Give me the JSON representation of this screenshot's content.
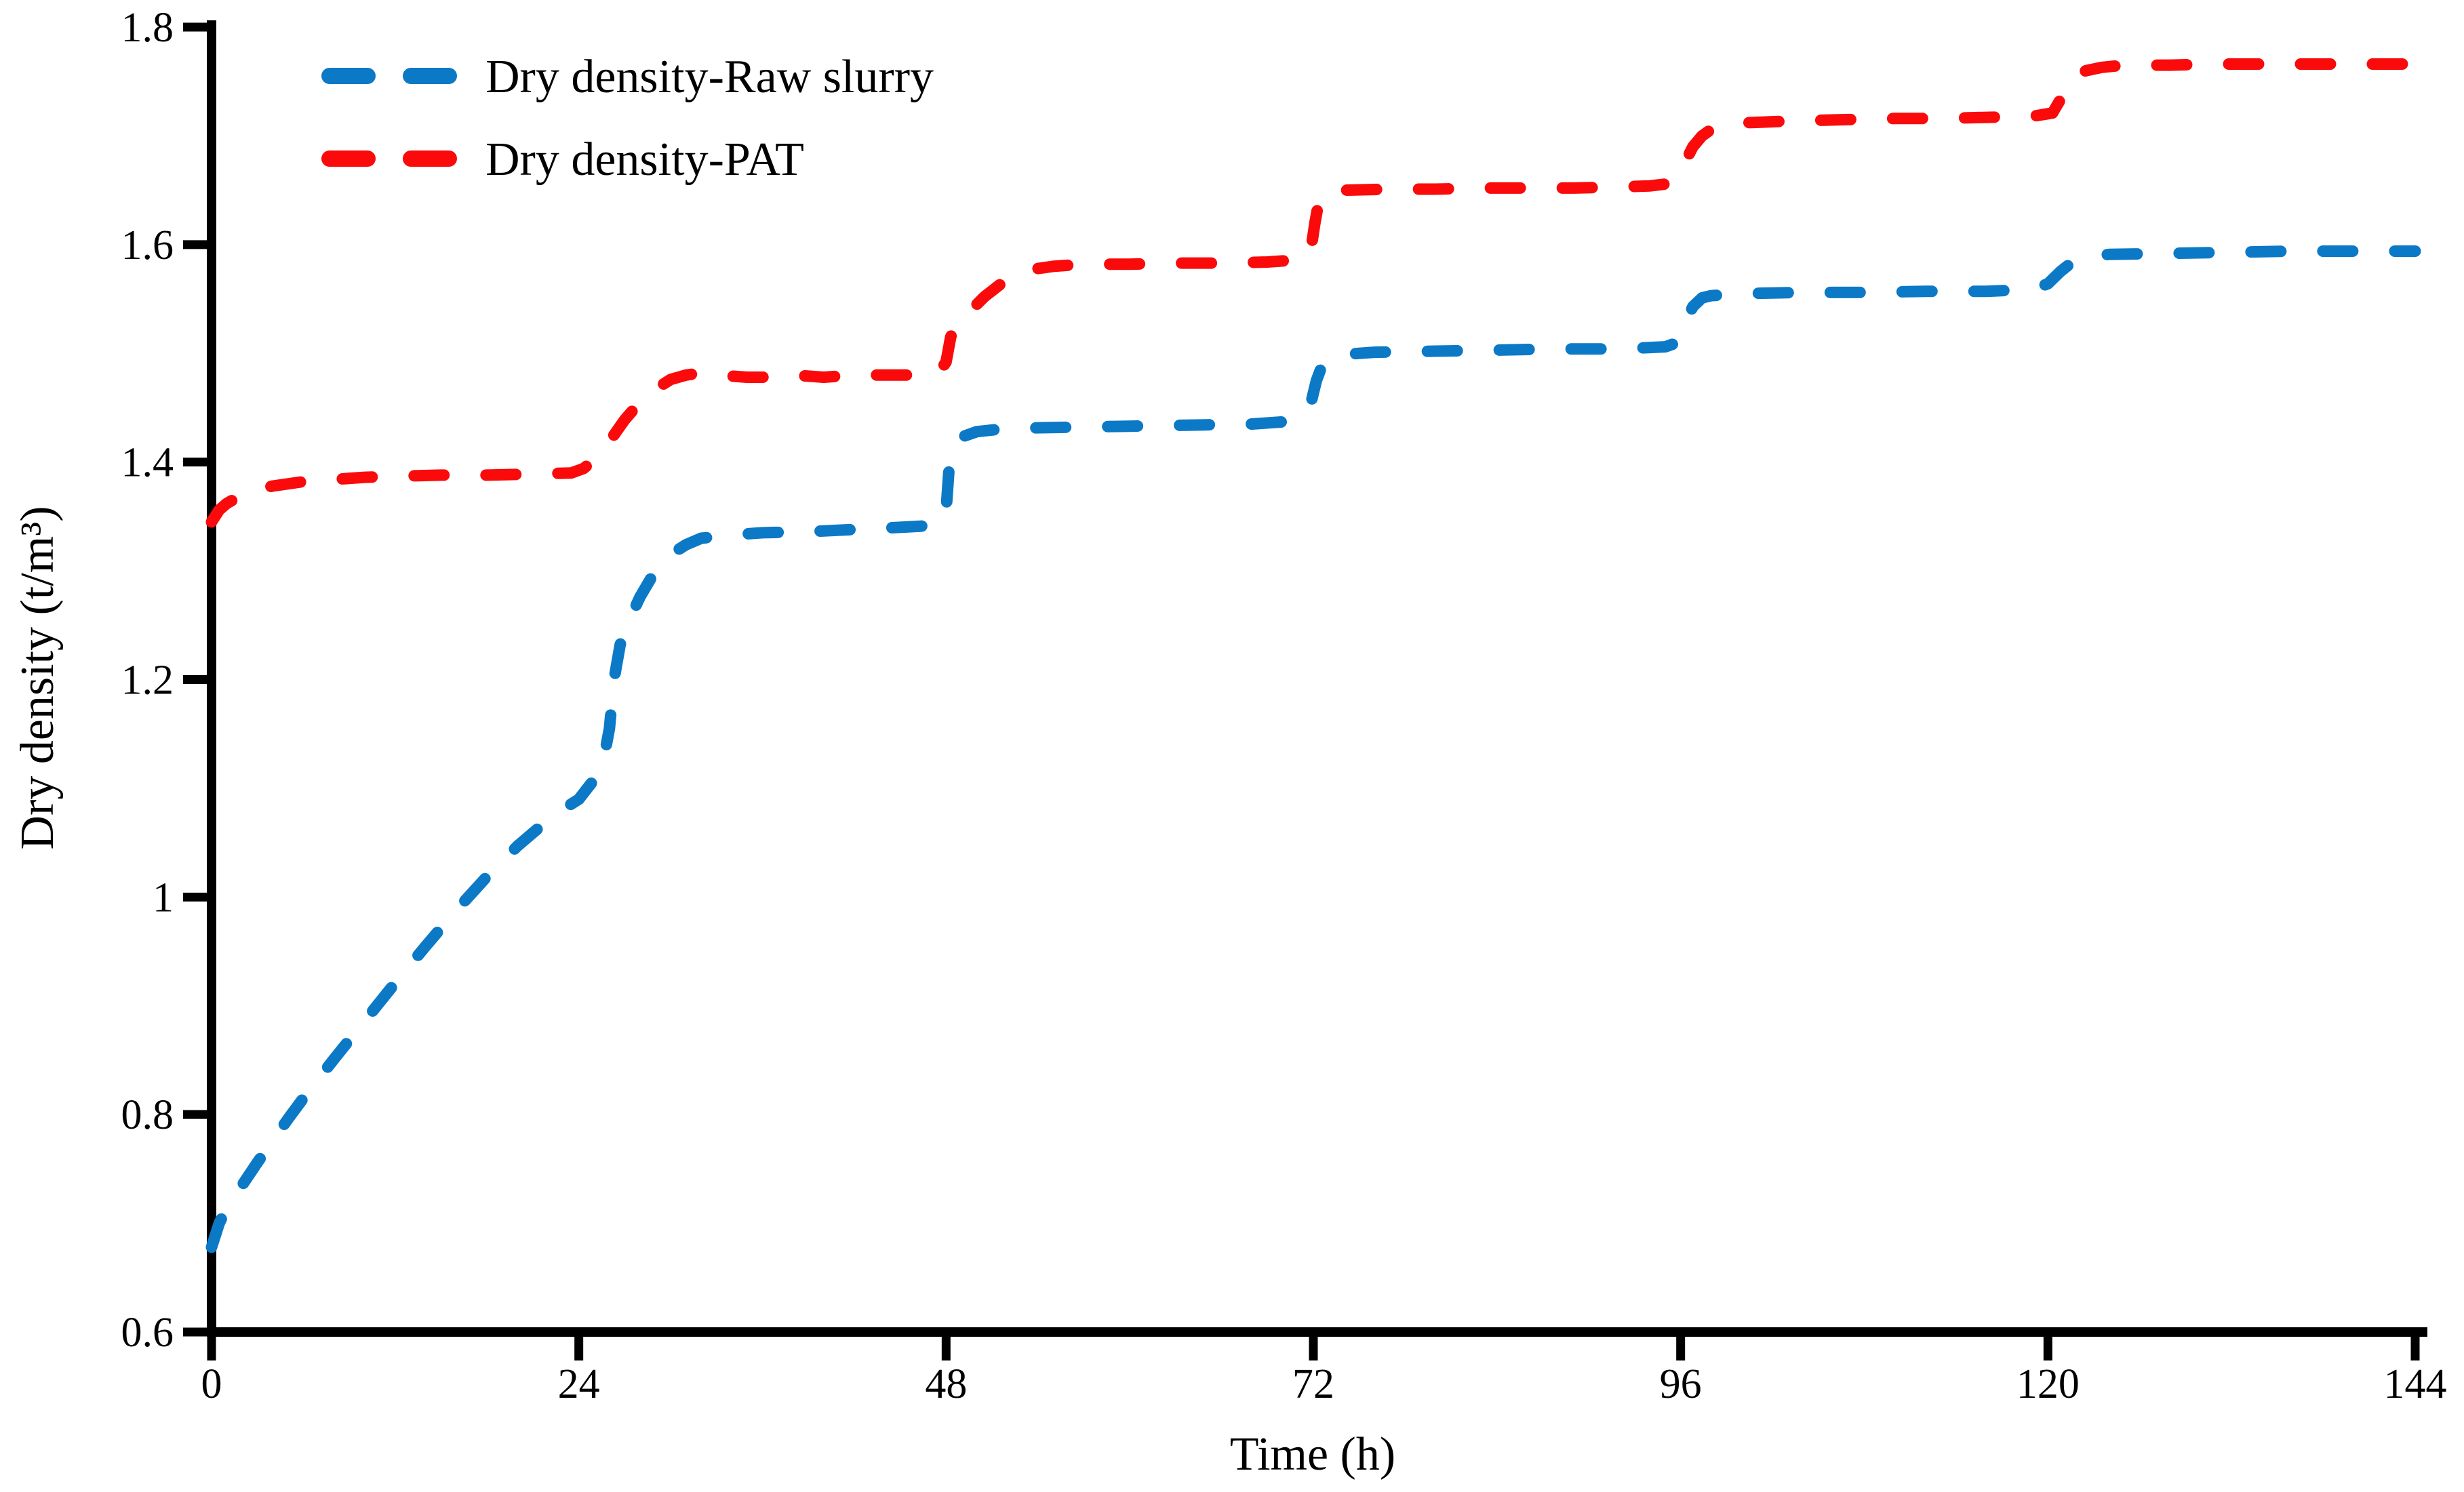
{
  "figure": {
    "background_color": "#ffffff",
    "text_color": "#000000",
    "axis_color": "#000000"
  },
  "chart_data": {
    "type": "line",
    "title": "",
    "xlabel": "Time (h)",
    "ylabel": "Dry density (t/m³)",
    "grid": false,
    "legend_position": "top-left-inside",
    "x_axis": {
      "title": "Time (h)",
      "min": 0,
      "max": 144,
      "ticks": [
        0,
        24,
        48,
        72,
        96,
        120,
        144
      ],
      "tick_labels": [
        "0",
        "24",
        "48",
        "72",
        "96",
        "120",
        "144"
      ]
    },
    "y_axis": {
      "title": "Dry density (t/m³)",
      "min": 0.6,
      "max": 1.8,
      "ticks": [
        0.6,
        0.8,
        1.0,
        1.2,
        1.4,
        1.6,
        1.8
      ],
      "tick_labels": [
        "0.6",
        "0.8",
        "1",
        "1.2",
        "1.4",
        "1.6",
        "1.8"
      ]
    },
    "series": [
      {
        "name": "Dry density-Raw slurry",
        "color": "#0b79c6",
        "line_style": "dashed",
        "points": [
          [
            0,
            0.678
          ],
          [
            0.5,
            0.7
          ],
          [
            1,
            0.714
          ],
          [
            2,
            0.735
          ],
          [
            3,
            0.756
          ],
          [
            4,
            0.776
          ],
          [
            5,
            0.796
          ],
          [
            6,
            0.815
          ],
          [
            7,
            0.833
          ],
          [
            8,
            0.851
          ],
          [
            10,
            0.886
          ],
          [
            12,
            0.921
          ],
          [
            14,
            0.955
          ],
          [
            16,
            0.988
          ],
          [
            18,
            1.019
          ],
          [
            20,
            1.047
          ],
          [
            22,
            1.071
          ],
          [
            23,
            1.081
          ],
          [
            24,
            1.09
          ],
          [
            25,
            1.108
          ],
          [
            25.6,
            1.125
          ],
          [
            26,
            1.155
          ],
          [
            26.3,
            1.2
          ],
          [
            26.7,
            1.232
          ],
          [
            27.2,
            1.252
          ],
          [
            28,
            1.276
          ],
          [
            29,
            1.3
          ],
          [
            30,
            1.315
          ],
          [
            31,
            1.324
          ],
          [
            32,
            1.33
          ],
          [
            34,
            1.333
          ],
          [
            36,
            1.335
          ],
          [
            39,
            1.336
          ],
          [
            42,
            1.338
          ],
          [
            45,
            1.34
          ],
          [
            47.5,
            1.342
          ],
          [
            48,
            1.355
          ],
          [
            48.2,
            1.395
          ],
          [
            48.5,
            1.415
          ],
          [
            49,
            1.423
          ],
          [
            50,
            1.428
          ],
          [
            52,
            1.431
          ],
          [
            56,
            1.432
          ],
          [
            60,
            1.433
          ],
          [
            64,
            1.434
          ],
          [
            68,
            1.435
          ],
          [
            70,
            1.437
          ],
          [
            71,
            1.44
          ],
          [
            71.8,
            1.452
          ],
          [
            72.2,
            1.475
          ],
          [
            72.6,
            1.49
          ],
          [
            73.2,
            1.496
          ],
          [
            74,
            1.499
          ],
          [
            76,
            1.501
          ],
          [
            80,
            1.502
          ],
          [
            84,
            1.503
          ],
          [
            88,
            1.504
          ],
          [
            92,
            1.504
          ],
          [
            95,
            1.506
          ],
          [
            95.8,
            1.51
          ],
          [
            96.3,
            1.528
          ],
          [
            96.8,
            1.543
          ],
          [
            97.4,
            1.551
          ],
          [
            98,
            1.553
          ],
          [
            100,
            1.555
          ],
          [
            104,
            1.556
          ],
          [
            108,
            1.556
          ],
          [
            112,
            1.557
          ],
          [
            116,
            1.557
          ],
          [
            119,
            1.559
          ],
          [
            120,
            1.564
          ],
          [
            120.8,
            1.575
          ],
          [
            121.6,
            1.584
          ],
          [
            122.5,
            1.589
          ],
          [
            124,
            1.591
          ],
          [
            128,
            1.592
          ],
          [
            132,
            1.593
          ],
          [
            136,
            1.594
          ],
          [
            140,
            1.594
          ],
          [
            144,
            1.594
          ]
        ]
      },
      {
        "name": "Dry density-PAT",
        "color": "#fa0a0a",
        "line_style": "dashed",
        "points": [
          [
            0,
            1.345
          ],
          [
            0.5,
            1.356
          ],
          [
            1,
            1.362
          ],
          [
            2,
            1.37
          ],
          [
            3,
            1.375
          ],
          [
            4,
            1.378
          ],
          [
            6,
            1.382
          ],
          [
            8,
            1.384
          ],
          [
            10,
            1.386
          ],
          [
            12,
            1.387
          ],
          [
            15,
            1.388
          ],
          [
            18,
            1.388
          ],
          [
            21,
            1.389
          ],
          [
            23.5,
            1.39
          ],
          [
            24.3,
            1.394
          ],
          [
            25,
            1.402
          ],
          [
            26,
            1.419
          ],
          [
            27,
            1.439
          ],
          [
            28,
            1.455
          ],
          [
            29,
            1.467
          ],
          [
            30,
            1.476
          ],
          [
            31,
            1.48
          ],
          [
            32,
            1.482
          ],
          [
            33,
            1.481
          ],
          [
            34,
            1.479
          ],
          [
            35,
            1.478
          ],
          [
            36,
            1.478
          ],
          [
            37,
            1.48
          ],
          [
            38,
            1.48
          ],
          [
            39,
            1.479
          ],
          [
            40,
            1.478
          ],
          [
            41,
            1.479
          ],
          [
            42,
            1.48
          ],
          [
            44,
            1.48
          ],
          [
            46,
            1.48
          ],
          [
            47.5,
            1.482
          ],
          [
            48,
            1.492
          ],
          [
            48.3,
            1.515
          ],
          [
            48.7,
            1.528
          ],
          [
            49.5,
            1.538
          ],
          [
            50.5,
            1.552
          ],
          [
            51.5,
            1.563
          ],
          [
            52.5,
            1.571
          ],
          [
            53.5,
            1.577
          ],
          [
            55,
            1.58
          ],
          [
            57,
            1.582
          ],
          [
            60,
            1.582
          ],
          [
            63,
            1.583
          ],
          [
            66,
            1.583
          ],
          [
            69,
            1.584
          ],
          [
            71,
            1.586
          ],
          [
            71.8,
            1.592
          ],
          [
            72.1,
            1.62
          ],
          [
            72.4,
            1.643
          ],
          [
            73,
            1.648
          ],
          [
            74,
            1.65
          ],
          [
            77,
            1.651
          ],
          [
            80,
            1.651
          ],
          [
            83,
            1.652
          ],
          [
            86,
            1.652
          ],
          [
            89,
            1.652
          ],
          [
            92,
            1.653
          ],
          [
            94,
            1.654
          ],
          [
            95.2,
            1.656
          ],
          [
            95.8,
            1.662
          ],
          [
            96.3,
            1.676
          ],
          [
            96.8,
            1.69
          ],
          [
            97.4,
            1.7
          ],
          [
            98,
            1.706
          ],
          [
            99,
            1.71
          ],
          [
            100,
            1.712
          ],
          [
            102,
            1.713
          ],
          [
            104,
            1.714
          ],
          [
            107,
            1.715
          ],
          [
            110,
            1.716
          ],
          [
            113,
            1.716
          ],
          [
            116,
            1.717
          ],
          [
            119,
            1.718
          ],
          [
            120.3,
            1.721
          ],
          [
            120.8,
            1.733
          ],
          [
            121.3,
            1.748
          ],
          [
            121.8,
            1.756
          ],
          [
            122.5,
            1.76
          ],
          [
            123.5,
            1.763
          ],
          [
            125,
            1.765
          ],
          [
            128,
            1.765
          ],
          [
            131,
            1.766
          ],
          [
            135,
            1.766
          ],
          [
            139,
            1.766
          ],
          [
            144,
            1.766
          ]
        ]
      }
    ]
  }
}
